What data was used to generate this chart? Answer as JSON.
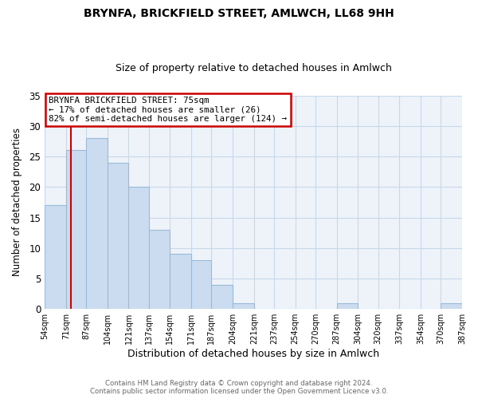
{
  "title": "BRYNFA, BRICKFIELD STREET, AMLWCH, LL68 9HH",
  "subtitle": "Size of property relative to detached houses in Amlwch",
  "xlabel": "Distribution of detached houses by size in Amlwch",
  "ylabel": "Number of detached properties",
  "bar_edges": [
    54,
    71,
    87,
    104,
    121,
    137,
    154,
    171,
    187,
    204,
    221,
    237,
    254,
    270,
    287,
    304,
    320,
    337,
    354,
    370,
    387
  ],
  "bar_heights": [
    17,
    26,
    28,
    24,
    20,
    13,
    9,
    8,
    4,
    1,
    0,
    0,
    0,
    0,
    1,
    0,
    0,
    0,
    0,
    1
  ],
  "bar_color": "#ccdcf0",
  "bar_edge_color": "#99bbd8",
  "ylim": [
    0,
    35
  ],
  "yticks": [
    0,
    5,
    10,
    15,
    20,
    25,
    30,
    35
  ],
  "xtick_labels": [
    "54sqm",
    "71sqm",
    "87sqm",
    "104sqm",
    "121sqm",
    "137sqm",
    "154sqm",
    "171sqm",
    "187sqm",
    "204sqm",
    "221sqm",
    "237sqm",
    "254sqm",
    "270sqm",
    "287sqm",
    "304sqm",
    "320sqm",
    "337sqm",
    "354sqm",
    "370sqm",
    "387sqm"
  ],
  "property_line_x": 75,
  "property_line_color": "#cc0000",
  "annotation_title": "BRYNFA BRICKFIELD STREET: 75sqm",
  "annotation_line1": "← 17% of detached houses are smaller (26)",
  "annotation_line2": "82% of semi-detached houses are larger (124) →",
  "footer_line1": "Contains HM Land Registry data © Crown copyright and database right 2024.",
  "footer_line2": "Contains public sector information licensed under the Open Government Licence v3.0.",
  "background_color": "#ffffff",
  "plot_bg_color": "#eef3fa",
  "grid_color": "#c8d8ea"
}
